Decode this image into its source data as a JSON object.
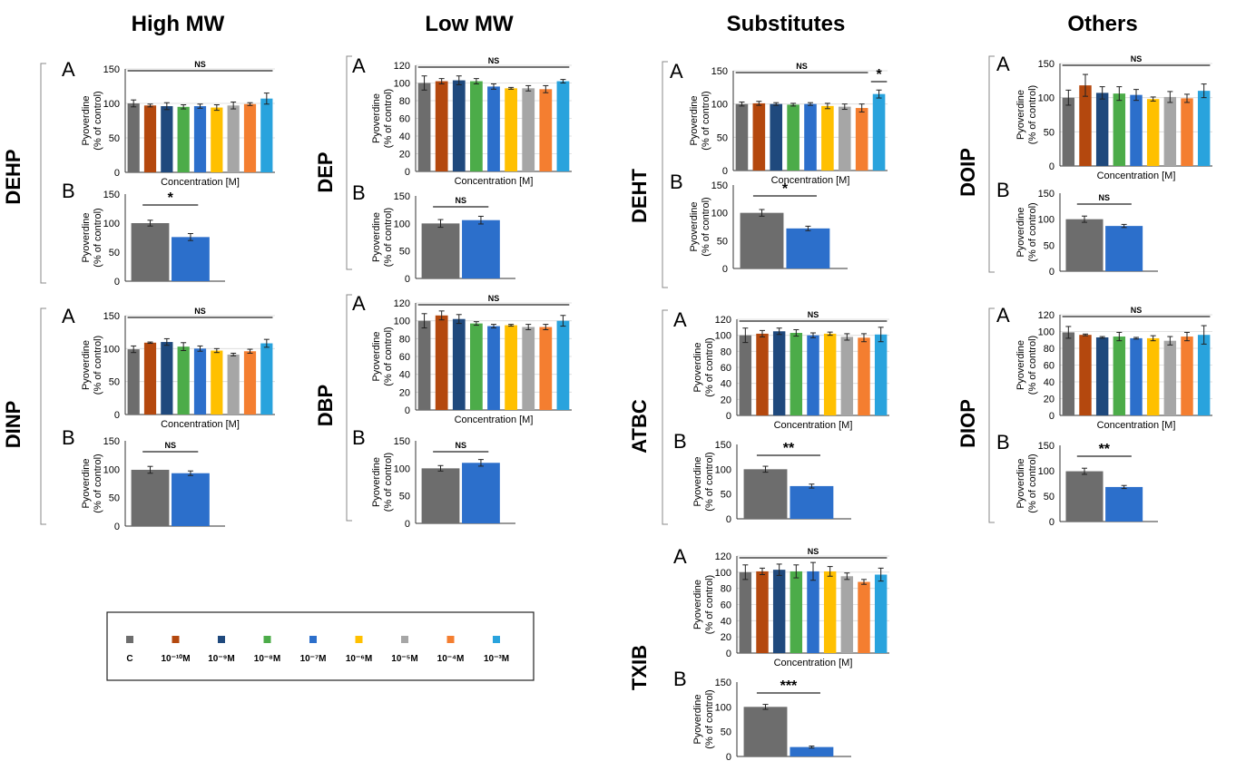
{
  "colors": {
    "c": "#6d6d6d",
    "m10": "#b4480e",
    "m9": "#1f497d",
    "m8": "#4cac49",
    "m7": "#2c6fcb",
    "m6": "#ffc000",
    "m5": "#a6a6a6",
    "m4": "#f47e30",
    "m3": "#29a3dd"
  },
  "column_titles": [
    "High MW",
    "Low MW",
    "Substitutes",
    "Others"
  ],
  "legend": {
    "keys": [
      "c",
      "m10",
      "m9",
      "m8",
      "m7",
      "m6",
      "m5",
      "m4",
      "m3"
    ],
    "labels": [
      "C",
      "10⁻¹⁰M",
      "10⁻⁹M",
      "10⁻⁸M",
      "10⁻⁷M",
      "10⁻⁶M",
      "10⁻⁵M",
      "10⁻⁴M",
      "10⁻³M"
    ]
  },
  "common": {
    "ylabel_line1": "Pyoverdine",
    "ylabel_line2": "(% of control)",
    "xlabel": "Concentration [M]",
    "letter_a": "A",
    "letter_b": "B"
  },
  "chart_data": [
    {
      "id": "DEHP",
      "name": "DEHP",
      "a": {
        "type": "bar",
        "ylim": [
          0,
          150
        ],
        "ticks": [
          0,
          50,
          100,
          150
        ],
        "values": [
          100,
          97,
          96,
          95,
          96,
          94,
          97,
          99,
          107
        ],
        "errors": [
          5,
          2,
          5,
          3,
          3,
          4,
          5,
          2,
          8
        ],
        "sig": [
          {
            "label": "NS",
            "from": 0,
            "to": 8
          }
        ]
      },
      "b": {
        "type": "bar",
        "ylim": [
          0,
          150
        ],
        "ticks": [
          0,
          50,
          100,
          150
        ],
        "values": [
          100,
          76
        ],
        "errors": [
          5,
          6
        ],
        "sig": [
          {
            "label": "*",
            "from": 0,
            "to": 1
          }
        ]
      }
    },
    {
      "id": "DINP",
      "name": "DINP",
      "a": {
        "type": "bar",
        "ylim": [
          0,
          150
        ],
        "ticks": [
          0,
          50,
          100,
          150
        ],
        "values": [
          99,
          109,
          110,
          103,
          100,
          97,
          91,
          96,
          108
        ],
        "errors": [
          5,
          1,
          5,
          6,
          4,
          3,
          2,
          3,
          6
        ],
        "sig": [
          {
            "label": "NS",
            "from": 0,
            "to": 8
          }
        ]
      },
      "b": {
        "type": "bar",
        "ylim": [
          0,
          150
        ],
        "ticks": [
          0,
          50,
          100,
          150
        ],
        "values": [
          99,
          93
        ],
        "errors": [
          6,
          4
        ],
        "sig": [
          {
            "label": "NS",
            "from": 0,
            "to": 1
          }
        ]
      }
    },
    {
      "id": "DEP",
      "name": "DEP",
      "a": {
        "type": "bar",
        "ylim": [
          0,
          120
        ],
        "ticks": [
          0,
          20,
          40,
          60,
          80,
          100,
          120
        ],
        "values": [
          100,
          102,
          103,
          102,
          96,
          94,
          94,
          93,
          102
        ],
        "errors": [
          8,
          3,
          5,
          3,
          3,
          1,
          3,
          4,
          2
        ],
        "sig": [
          {
            "label": "NS",
            "from": 0,
            "to": 8
          }
        ]
      },
      "b": {
        "type": "bar",
        "ylim": [
          0,
          150
        ],
        "ticks": [
          0,
          50,
          100,
          150
        ],
        "values": [
          100,
          106
        ],
        "errors": [
          7,
          7
        ],
        "sig": [
          {
            "label": "NS",
            "from": 0,
            "to": 1
          }
        ]
      }
    },
    {
      "id": "DBP",
      "name": "DBP",
      "a": {
        "type": "bar",
        "ylim": [
          0,
          120
        ],
        "ticks": [
          0,
          20,
          40,
          60,
          80,
          100,
          120
        ],
        "values": [
          100,
          106,
          102,
          97,
          94,
          95,
          93,
          93,
          100
        ],
        "errors": [
          8,
          5,
          5,
          2,
          2,
          1,
          3,
          3,
          6
        ],
        "sig": [
          {
            "label": "NS",
            "from": 0,
            "to": 8
          }
        ]
      },
      "b": {
        "type": "bar",
        "ylim": [
          0,
          150
        ],
        "ticks": [
          0,
          50,
          100,
          150
        ],
        "values": [
          100,
          110
        ],
        "errors": [
          5,
          6
        ],
        "sig": [
          {
            "label": "NS",
            "from": 0,
            "to": 1
          }
        ]
      }
    },
    {
      "id": "DEHT",
      "name": "DEHT",
      "a": {
        "type": "bar",
        "ylim": [
          0,
          150
        ],
        "ticks": [
          0,
          50,
          100,
          150
        ],
        "values": [
          100,
          101,
          100,
          99,
          100,
          97,
          96,
          94,
          115
        ],
        "errors": [
          3,
          3,
          2,
          2,
          2,
          4,
          4,
          6,
          6
        ],
        "sig": [
          {
            "label": "NS",
            "from": 0,
            "to": 7
          },
          {
            "label": "*",
            "from": 8,
            "to": 8
          }
        ]
      },
      "b": {
        "type": "bar",
        "ylim": [
          0,
          150
        ],
        "ticks": [
          0,
          50,
          100,
          150
        ],
        "values": [
          100,
          72
        ],
        "errors": [
          6,
          4
        ],
        "sig": [
          {
            "label": "*",
            "from": 0,
            "to": 1
          }
        ]
      }
    },
    {
      "id": "ATBC",
      "name": "ATBC",
      "a": {
        "type": "bar",
        "ylim": [
          0,
          120
        ],
        "ticks": [
          0,
          20,
          40,
          60,
          80,
          100,
          120
        ],
        "values": [
          100,
          102,
          105,
          103,
          100,
          102,
          98,
          97,
          101
        ],
        "errors": [
          9,
          4,
          4,
          4,
          3,
          2,
          4,
          5,
          9
        ],
        "sig": [
          {
            "label": "NS",
            "from": 0,
            "to": 8
          }
        ]
      },
      "b": {
        "type": "bar",
        "ylim": [
          0,
          150
        ],
        "ticks": [
          0,
          50,
          100,
          150
        ],
        "values": [
          100,
          66
        ],
        "errors": [
          6,
          4
        ],
        "sig": [
          {
            "label": "**",
            "from": 0,
            "to": 1
          }
        ]
      }
    },
    {
      "id": "TXIB",
      "name": "TXIB",
      "a": {
        "type": "bar",
        "ylim": [
          0,
          120
        ],
        "ticks": [
          0,
          20,
          40,
          60,
          80,
          100,
          120
        ],
        "values": [
          100,
          101,
          103,
          101,
          101,
          101,
          95,
          88,
          97
        ],
        "errors": [
          9,
          4,
          7,
          8,
          11,
          6,
          4,
          3,
          8
        ],
        "sig": [
          {
            "label": "NS",
            "from": 0,
            "to": 8
          }
        ]
      },
      "b": {
        "type": "bar",
        "ylim": [
          0,
          150
        ],
        "ticks": [
          0,
          50,
          100,
          150
        ],
        "values": [
          100,
          19
        ],
        "errors": [
          5,
          2
        ],
        "sig": [
          {
            "label": "***",
            "from": 0,
            "to": 1
          }
        ]
      }
    },
    {
      "id": "DOIP",
      "name": "DOIP",
      "a": {
        "type": "bar",
        "ylim": [
          0,
          150
        ],
        "ticks": [
          0,
          50,
          100,
          150
        ],
        "values": [
          100,
          118,
          107,
          106,
          104,
          98,
          101,
          99,
          110
        ],
        "errors": [
          11,
          16,
          9,
          10,
          8,
          3,
          8,
          6,
          10
        ],
        "sig": [
          {
            "label": "NS",
            "from": 0,
            "to": 8
          }
        ]
      },
      "b": {
        "type": "bar",
        "ylim": [
          0,
          150
        ],
        "ticks": [
          0,
          50,
          100,
          150
        ],
        "values": [
          100,
          87
        ],
        "errors": [
          6,
          3
        ],
        "sig": [
          {
            "label": "NS",
            "from": 0,
            "to": 1
          }
        ]
      }
    },
    {
      "id": "DIOP",
      "name": "DIOP",
      "a": {
        "type": "bar",
        "ylim": [
          0,
          120
        ],
        "ticks": [
          0,
          20,
          40,
          60,
          80,
          100,
          120
        ],
        "values": [
          99,
          96,
          93,
          94,
          92,
          92,
          89,
          94,
          96
        ],
        "errors": [
          7,
          1,
          1,
          5,
          1,
          3,
          5,
          5,
          11
        ],
        "sig": [
          {
            "label": "NS",
            "from": 0,
            "to": 8
          }
        ]
      },
      "b": {
        "type": "bar",
        "ylim": [
          0,
          150
        ],
        "ticks": [
          0,
          50,
          100,
          150
        ],
        "values": [
          99,
          68
        ],
        "errors": [
          6,
          3
        ],
        "sig": [
          {
            "label": "**",
            "from": 0,
            "to": 1
          }
        ]
      }
    }
  ]
}
